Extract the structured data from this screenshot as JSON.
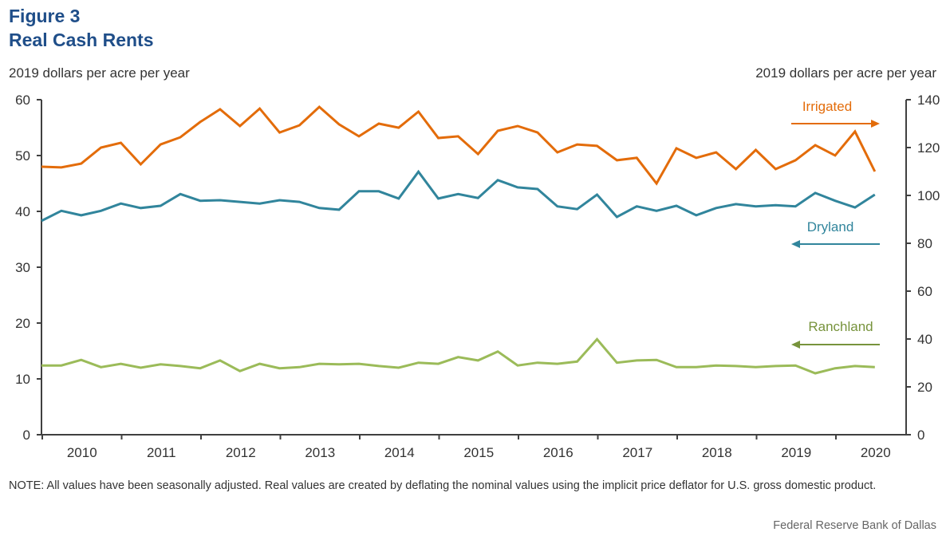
{
  "header": {
    "figure_label": "Figure 3",
    "title": "Real Cash Rents",
    "left_unit": "2019 dollars per acre per year",
    "right_unit": "2019 dollars per acre per year"
  },
  "footer": {
    "note": "NOTE: All values have been seasonally adjusted. Real values are created by deflating the nominal values using the implicit price deflator for U.S. gross domestic product.",
    "source": "Federal Reserve Bank of Dallas"
  },
  "chart_data": {
    "type": "line",
    "title": "Real Cash Rents",
    "xlabel": "",
    "ylabel_left": "2019 dollars per acre per year",
    "ylabel_right": "2019 dollars per acre per year",
    "ylim_left": [
      0,
      60
    ],
    "ylim_right": [
      0,
      140
    ],
    "yticks_left": [
      0,
      10,
      20,
      30,
      40,
      50,
      60
    ],
    "yticks_right": [
      0,
      20,
      40,
      60,
      80,
      100,
      120,
      140
    ],
    "x_tick_labels": [
      "2010",
      "2011",
      "2012",
      "2013",
      "2014",
      "2015",
      "2016",
      "2017",
      "2018",
      "2019",
      "2020"
    ],
    "x_start": "2010Q1",
    "frequency": "quarterly",
    "grid": false,
    "series": [
      {
        "name": "Irrigated",
        "axis": "right",
        "color": "#e36c0a",
        "arrow": "right",
        "values": [
          112.0,
          111.7,
          113.3,
          120.0,
          122.0,
          113.0,
          121.3,
          124.3,
          130.7,
          136.0,
          129.0,
          136.3,
          126.3,
          129.3,
          137.0,
          129.7,
          124.7,
          130.0,
          128.3,
          135.0,
          124.0,
          124.7,
          117.3,
          127.0,
          129.0,
          126.3,
          118.0,
          121.3,
          120.7,
          114.7,
          115.7,
          105.0,
          119.7,
          115.7,
          118.0,
          111.0,
          119.0,
          111.0,
          114.7,
          121.0,
          116.7,
          126.7,
          110.0
        ]
      },
      {
        "name": "Dryland",
        "axis": "left",
        "color": "#31859c",
        "arrow": "left",
        "values": [
          38.3,
          40.1,
          39.3,
          40.1,
          41.4,
          40.6,
          41.0,
          43.1,
          41.9,
          42.0,
          41.7,
          41.4,
          42.0,
          41.7,
          40.6,
          40.3,
          43.6,
          43.6,
          42.3,
          47.1,
          42.3,
          43.1,
          42.4,
          45.6,
          44.3,
          44.0,
          40.9,
          40.4,
          43.0,
          39.0,
          40.9,
          40.1,
          41.0,
          39.3,
          40.6,
          41.3,
          40.9,
          41.1,
          40.9,
          43.3,
          41.9,
          40.7,
          43.0
        ]
      },
      {
        "name": "Ranchland",
        "axis": "left",
        "color": "#9bbb59",
        "label_color": "#77933c",
        "arrow": "left",
        "values": [
          12.4,
          12.4,
          13.4,
          12.1,
          12.7,
          12.0,
          12.6,
          12.3,
          11.9,
          13.3,
          11.4,
          12.7,
          11.9,
          12.1,
          12.7,
          12.6,
          12.7,
          12.3,
          12.0,
          12.9,
          12.7,
          13.9,
          13.3,
          14.9,
          12.4,
          12.9,
          12.7,
          13.1,
          17.1,
          12.9,
          13.3,
          13.4,
          12.1,
          12.1,
          12.4,
          12.3,
          12.1,
          12.3,
          12.4,
          11.0,
          11.9,
          12.3,
          12.1
        ]
      }
    ]
  }
}
